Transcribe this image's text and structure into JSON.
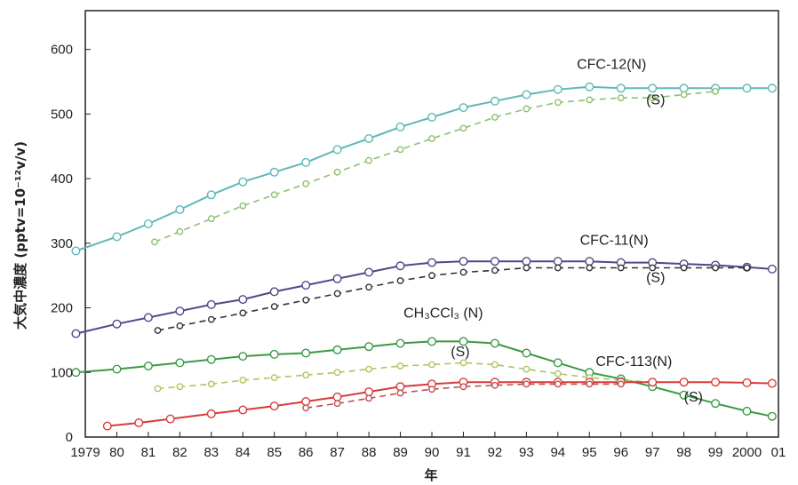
{
  "chart_data": {
    "type": "line",
    "xlabel": "年",
    "ylabel": "大気中濃度 (pptv=10⁻¹²v/v)",
    "xlim": [
      1979,
      2001
    ],
    "ylim": [
      0,
      660
    ],
    "x_tick_labels": [
      {
        "x": 1979,
        "label": "1979"
      },
      {
        "x": 1980,
        "label": "80"
      },
      {
        "x": 1981,
        "label": "81"
      },
      {
        "x": 1982,
        "label": "82"
      },
      {
        "x": 1983,
        "label": "83"
      },
      {
        "x": 1984,
        "label": "84"
      },
      {
        "x": 1985,
        "label": "85"
      },
      {
        "x": 1986,
        "label": "86"
      },
      {
        "x": 1987,
        "label": "87"
      },
      {
        "x": 1988,
        "label": "88"
      },
      {
        "x": 1989,
        "label": "89"
      },
      {
        "x": 1990,
        "label": "90"
      },
      {
        "x": 1991,
        "label": "91"
      },
      {
        "x": 1992,
        "label": "92"
      },
      {
        "x": 1993,
        "label": "93"
      },
      {
        "x": 1994,
        "label": "94"
      },
      {
        "x": 1995,
        "label": "95"
      },
      {
        "x": 1996,
        "label": "96"
      },
      {
        "x": 1997,
        "label": "97"
      },
      {
        "x": 1998,
        "label": "98"
      },
      {
        "x": 1999,
        "label": "99"
      },
      {
        "x": 2000,
        "label": "2000"
      },
      {
        "x": 2001,
        "label": "01"
      }
    ],
    "y_ticks": [
      0,
      100,
      200,
      300,
      400,
      500,
      600
    ],
    "grid": false,
    "legend": "none",
    "series": [
      {
        "name": "CFC-12(N)",
        "color": "#5fb8b8",
        "style": "solid",
        "x": [
          1978.7,
          1980,
          1981,
          1982,
          1983,
          1984,
          1985,
          1986,
          1987,
          1988,
          1989,
          1990,
          1991,
          1992,
          1993,
          1994,
          1995,
          1996,
          1997,
          1998,
          1999,
          2000,
          2000.8
        ],
        "y": [
          288,
          310,
          330,
          352,
          375,
          395,
          410,
          425,
          445,
          462,
          480,
          495,
          510,
          520,
          530,
          538,
          542,
          540,
          540,
          540,
          540,
          540,
          540
        ]
      },
      {
        "name": "(S)",
        "color": "#8cc070",
        "style": "dashed",
        "x": [
          1981.2,
          1982,
          1983,
          1984,
          1985,
          1986,
          1987,
          1988,
          1989,
          1990,
          1991,
          1992,
          1993,
          1994,
          1995,
          1996,
          1997,
          1998,
          1999
        ],
        "y": [
          302,
          318,
          338,
          358,
          375,
          392,
          410,
          428,
          445,
          462,
          478,
          495,
          508,
          518,
          522,
          525,
          525,
          530,
          535
        ]
      },
      {
        "name": "CFC-11(N)",
        "color": "#4a4a8a",
        "style": "solid",
        "x": [
          1978.7,
          1980,
          1981,
          1982,
          1983,
          1984,
          1985,
          1986,
          1987,
          1988,
          1989,
          1990,
          1991,
          1992,
          1993,
          1994,
          1995,
          1996,
          1997,
          1998,
          1999,
          2000,
          2000.8
        ],
        "y": [
          160,
          175,
          185,
          195,
          205,
          213,
          225,
          235,
          245,
          255,
          265,
          270,
          272,
          272,
          272,
          272,
          272,
          270,
          270,
          268,
          266,
          263,
          260
        ]
      },
      {
        "name": "(S)",
        "color": "#333333",
        "style": "dashed",
        "x": [
          1981.3,
          1982,
          1983,
          1984,
          1985,
          1986,
          1987,
          1988,
          1989,
          1990,
          1991,
          1992,
          1993,
          1994,
          1995,
          1996,
          1997,
          1998,
          1999,
          2000
        ],
        "y": [
          165,
          172,
          182,
          192,
          202,
          212,
          222,
          232,
          242,
          250,
          255,
          258,
          262,
          262,
          262,
          262,
          262,
          262,
          262,
          262
        ]
      },
      {
        "name": "CH₃CCl₃(N)",
        "color": "#3a9a45",
        "style": "solid",
        "x": [
          1978.7,
          1980,
          1981,
          1982,
          1983,
          1984,
          1985,
          1986,
          1987,
          1988,
          1989,
          1990,
          1991,
          1992,
          1993,
          1994,
          1995,
          1996,
          1997,
          1998,
          1999,
          2000,
          2000.8
        ],
        "y": [
          100,
          105,
          110,
          115,
          120,
          125,
          128,
          130,
          135,
          140,
          145,
          148,
          148,
          145,
          130,
          115,
          100,
          90,
          78,
          65,
          52,
          40,
          32
        ]
      },
      {
        "name": "(S)",
        "color": "#a8c860",
        "style": "dashed",
        "x": [
          1981.3,
          1982,
          1983,
          1984,
          1985,
          1986,
          1987,
          1988,
          1989,
          1990,
          1991,
          1992,
          1993,
          1994,
          1995,
          1996,
          1997
        ],
        "y": [
          75,
          78,
          82,
          88,
          92,
          96,
          100,
          105,
          110,
          112,
          115,
          112,
          105,
          98,
          92,
          88,
          85
        ]
      },
      {
        "name": "CFC-113(N)",
        "color": "#d83a3a",
        "style": "solid",
        "x": [
          1979.7,
          1980.7,
          1981.7,
          1983,
          1984,
          1985,
          1986,
          1987,
          1988,
          1989,
          1990,
          1991,
          1992,
          1993,
          1994,
          1995,
          1996,
          1997,
          1998,
          1999,
          2000,
          2000.8
        ],
        "y": [
          17,
          22,
          28,
          36,
          42,
          48,
          55,
          62,
          70,
          78,
          82,
          85,
          85,
          85,
          85,
          85,
          85,
          85,
          85,
          85,
          84,
          83
        ]
      },
      {
        "name": "(S)",
        "color": "#c05050",
        "style": "dashed",
        "x": [
          1986,
          1987,
          1988,
          1989,
          1990,
          1991,
          1992,
          1993,
          1994,
          1995,
          1996
        ],
        "y": [
          45,
          52,
          60,
          68,
          74,
          78,
          80,
          82,
          82,
          82,
          82
        ]
      }
    ],
    "annotations": [
      {
        "text": "CFC-12(N)",
        "x": 1994.6,
        "y": 570
      },
      {
        "text": "(S)",
        "x": 1996.8,
        "y": 515
      },
      {
        "text": "CFC-11(N)",
        "x": 1994.7,
        "y": 298
      },
      {
        "text": "(S)",
        "x": 1996.8,
        "y": 240
      },
      {
        "text": "CH₃CCl₃ (N)",
        "x": 1989.1,
        "y": 185
      },
      {
        "text": "(S)",
        "x": 1990.6,
        "y": 125
      },
      {
        "text": "CFC-113(N)",
        "x": 1995.2,
        "y": 110
      },
      {
        "text": "(S)",
        "x": 1998.0,
        "y": 55
      }
    ]
  }
}
